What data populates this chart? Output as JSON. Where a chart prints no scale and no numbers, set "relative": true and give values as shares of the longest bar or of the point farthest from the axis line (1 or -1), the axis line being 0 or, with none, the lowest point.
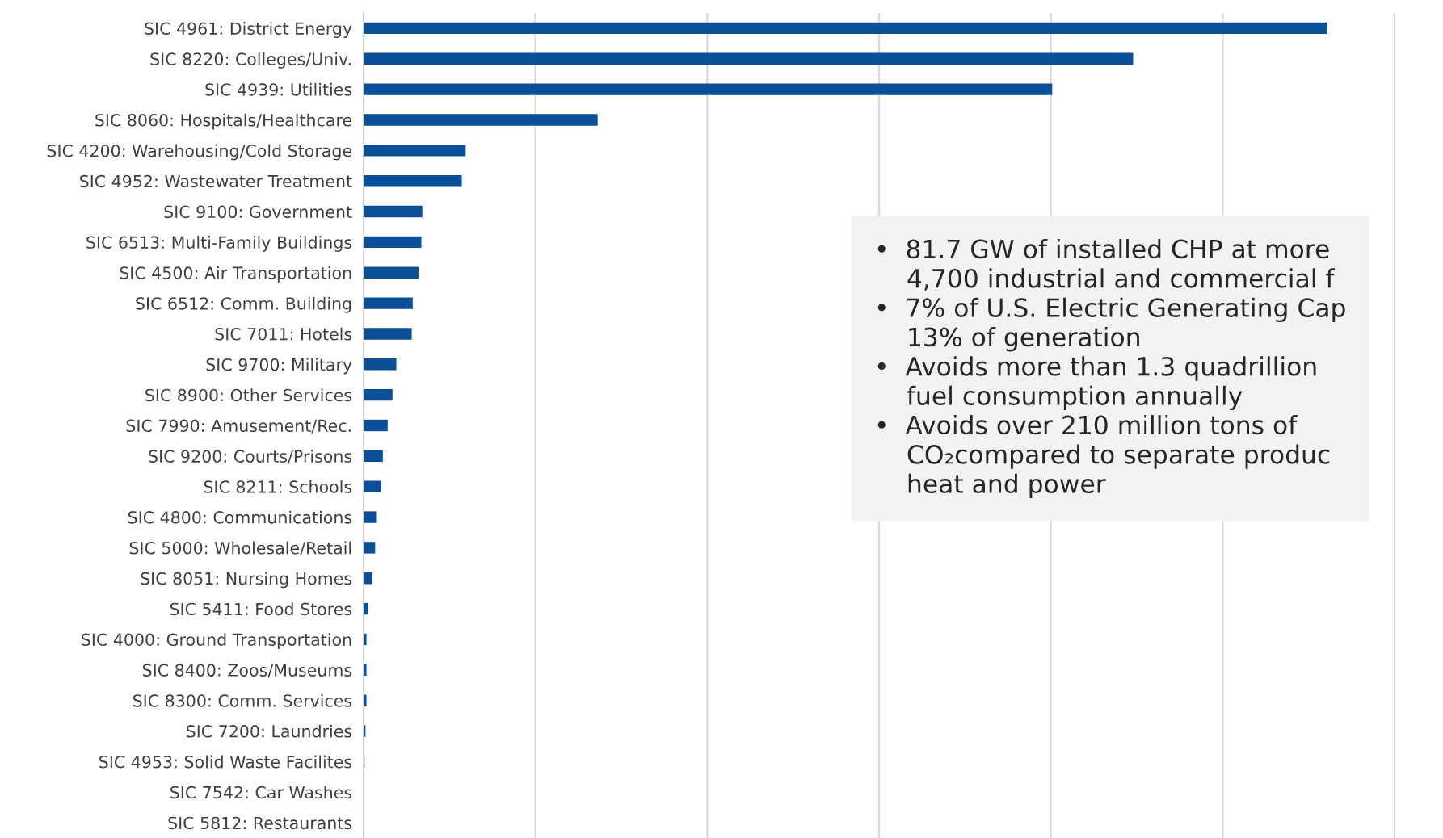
{
  "chart_data": {
    "type": "bar",
    "orientation": "horizontal",
    "relative": true,
    "grid": "x",
    "tick_labels": "y",
    "color": "#0b4f98",
    "categories": [
      "SIC 4961: District Energy",
      "SIC 8220: Colleges/Univ.",
      "SIC 4939: Utilities",
      "SIC 8060: Hospitals/Healthcare",
      "SIC 4200: Warehousing/Cold Storage",
      "SIC 4952: Wastewater Treatment",
      "SIC 9100: Government",
      "SIC 6513: Multi-Family Buildings",
      "SIC 4500: Air Transportation",
      "SIC 6512: Comm. Building",
      "SIC 7011: Hotels",
      "SIC 9700: Military",
      "SIC 8900: Other Services",
      "SIC 7990: Amusement/Rec.",
      "SIC 9200: Courts/Prisons",
      "SIC 8211: Schools",
      "SIC 4800: Communications",
      "SIC 5000: Wholesale/Retail",
      "SIC 8051: Nursing Homes",
      "SIC 5411: Food Stores",
      "SIC 4000: Ground Transportation",
      "SIC 8400: Zoos/Museums",
      "SIC 8300: Comm. Services",
      "SIC 7200: Laundries",
      "SIC 4953: Solid Waste Facilites",
      "SIC 7542: Car Washes",
      "SIC 5812: Restaurants"
    ],
    "values": [
      1,
      0.799,
      0.715,
      0.243,
      0.106,
      0.102,
      0.061,
      0.06,
      0.057,
      0.051,
      0.05,
      0.034,
      0.03,
      0.025,
      0.02,
      0.018,
      0.013,
      0.012,
      0.009,
      0.005,
      0.003,
      0.003,
      0.003,
      0.002,
      0.001,
      0,
      0
    ],
    "annotations": [
      "•  81.7 GW of installed CHP at more\n    4,700 industrial and commercial f\n•  7% of U.S. Electric Generating Cap\n    13% of generation\n•  Avoids more than 1.3 quadrillion\n    fuel consumption annually\n•  Avoids over 210 million tons of\n    CO₂compared to separate produc\n    heat and power"
    ]
  }
}
